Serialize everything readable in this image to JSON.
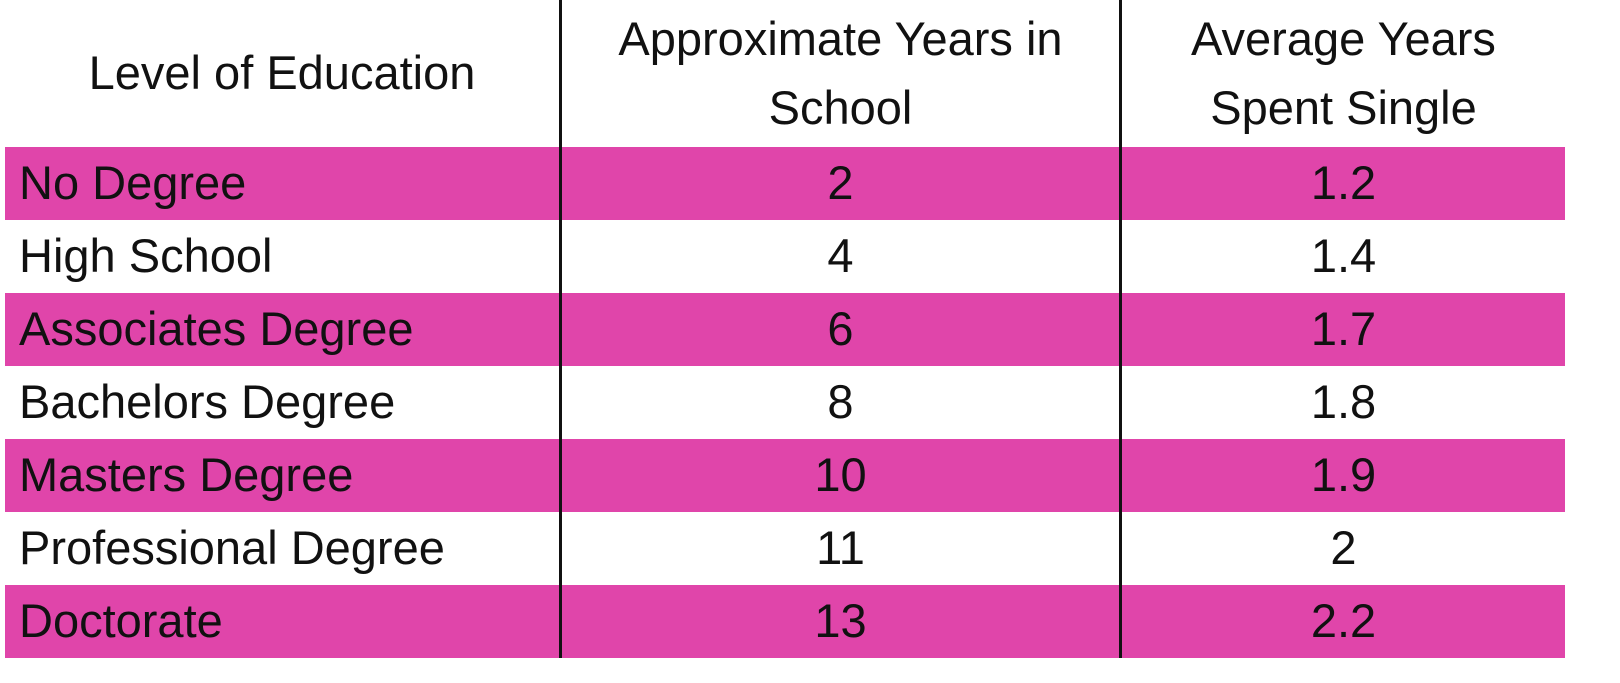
{
  "table": {
    "header": [
      "Level of Education",
      "Approximate Years in School",
      "Average Years Spent Single"
    ],
    "rows": [
      [
        "No Degree",
        2,
        1.2
      ],
      [
        "High School",
        4,
        1.4
      ],
      [
        "Associates Degree",
        6,
        1.7
      ],
      [
        "Bachelors Degree",
        8,
        1.8
      ],
      [
        "Masters Degree",
        10,
        1.9
      ],
      [
        "Professional Degree",
        11,
        2
      ],
      [
        "Doctorate",
        13,
        2.2
      ]
    ]
  }
}
